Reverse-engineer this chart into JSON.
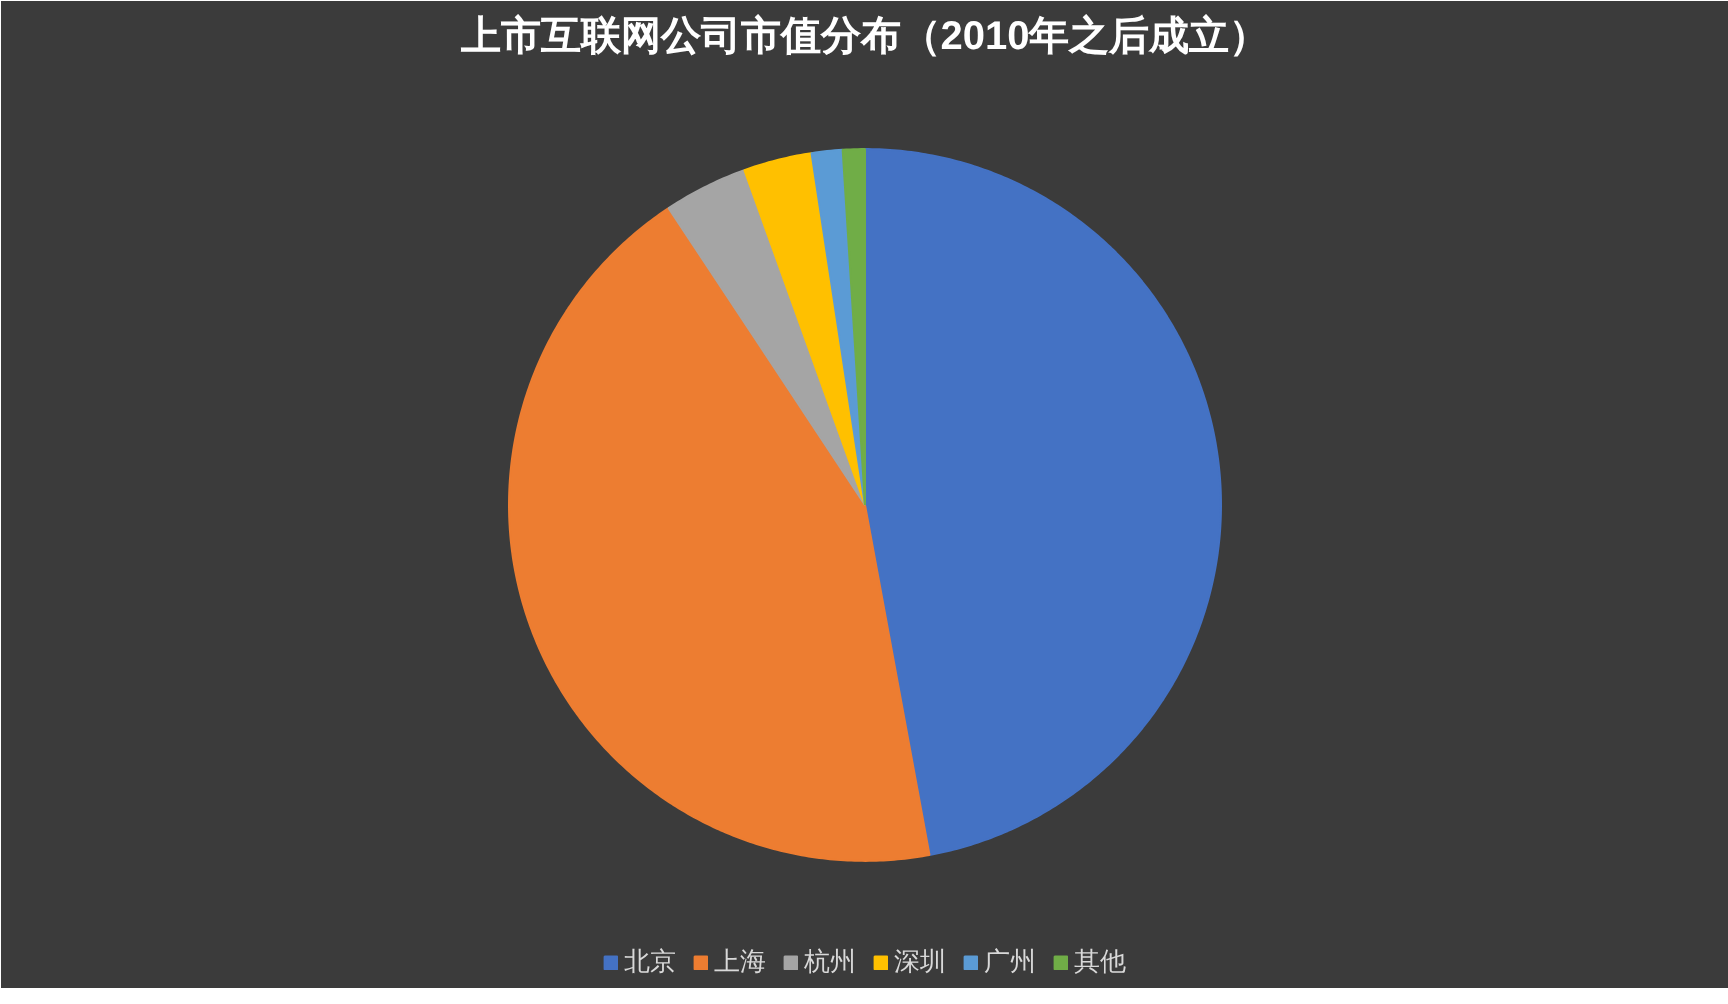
{
  "chart_data": {
    "type": "pie",
    "title": "上市互联网公司市值分布（2010年之后成立）",
    "categories": [
      "北京",
      "上海",
      "杭州",
      "深圳",
      "广州",
      "其他"
    ],
    "values": [
      47.1,
      43.6,
      3.8,
      3.1,
      1.4,
      1.0
    ],
    "colors": [
      "#4472c4",
      "#ed7d31",
      "#a5a5a5",
      "#ffc000",
      "#5b9bd5",
      "#70ad47"
    ],
    "legend": "bottom"
  }
}
